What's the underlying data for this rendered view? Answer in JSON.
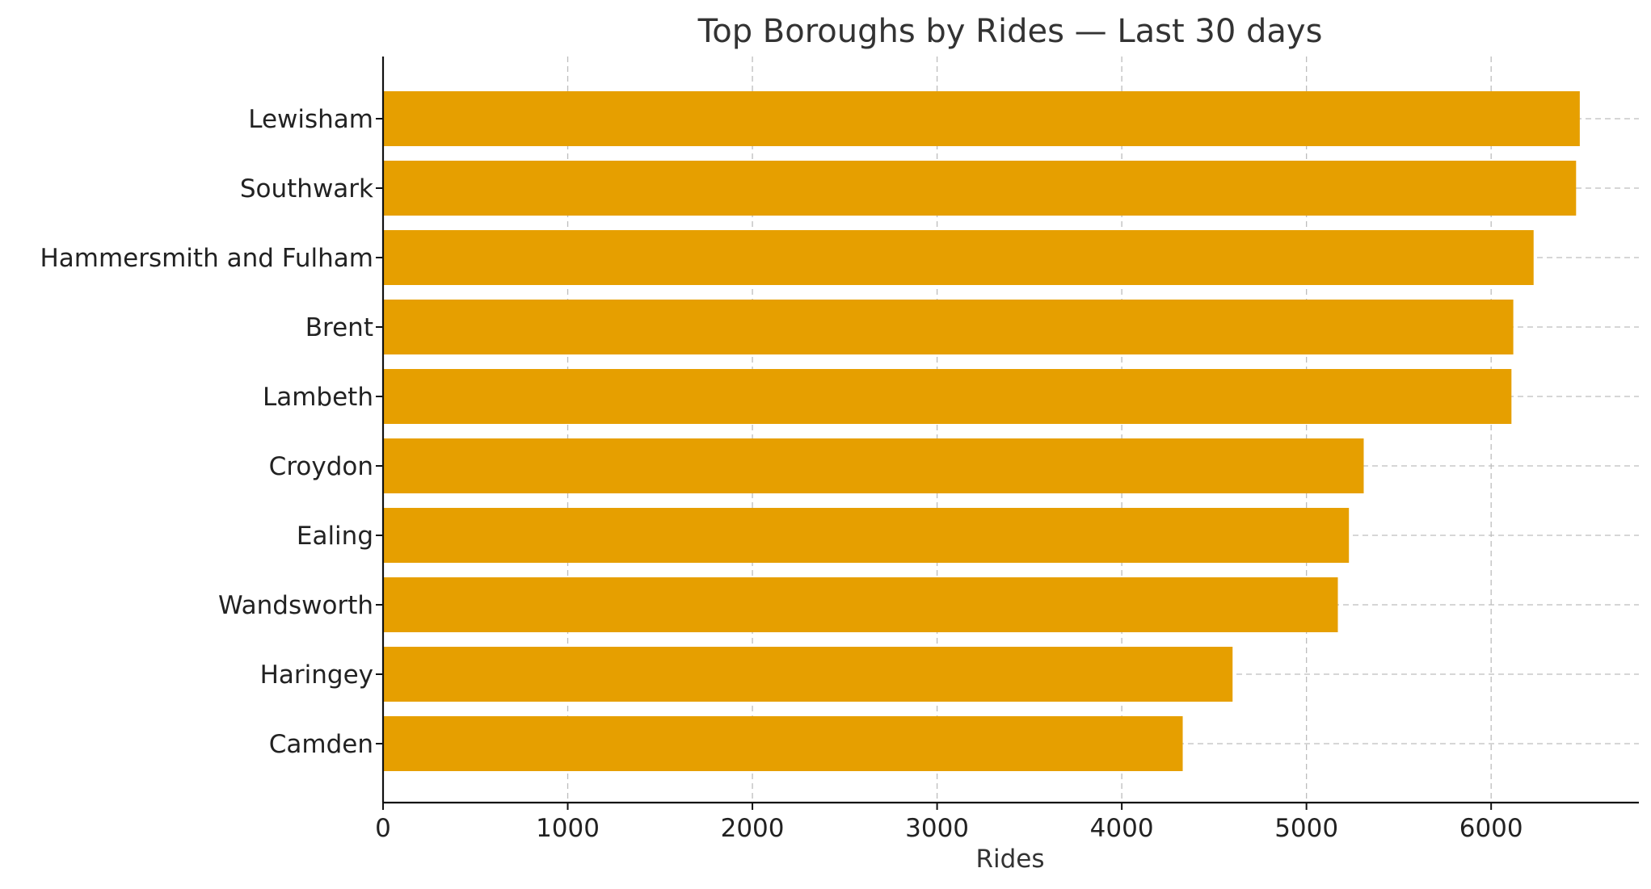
{
  "chart_data": {
    "type": "bar",
    "orientation": "horizontal",
    "title": "Top Boroughs by Rides — Last 30 days",
    "xlabel": "Rides",
    "ylabel": "",
    "categories": [
      "Lewisham",
      "Southwark",
      "Hammersmith and Fulham",
      "Brent",
      "Lambeth",
      "Croydon",
      "Ealing",
      "Wandsworth",
      "Haringey",
      "Camden"
    ],
    "values": [
      6480,
      6460,
      6230,
      6120,
      6110,
      5310,
      5230,
      5170,
      4600,
      4330
    ],
    "xlim": [
      0,
      6800
    ],
    "xticks": [
      0,
      1000,
      2000,
      3000,
      4000,
      5000,
      6000
    ],
    "grid": true,
    "bar_color": "#E69F00"
  }
}
